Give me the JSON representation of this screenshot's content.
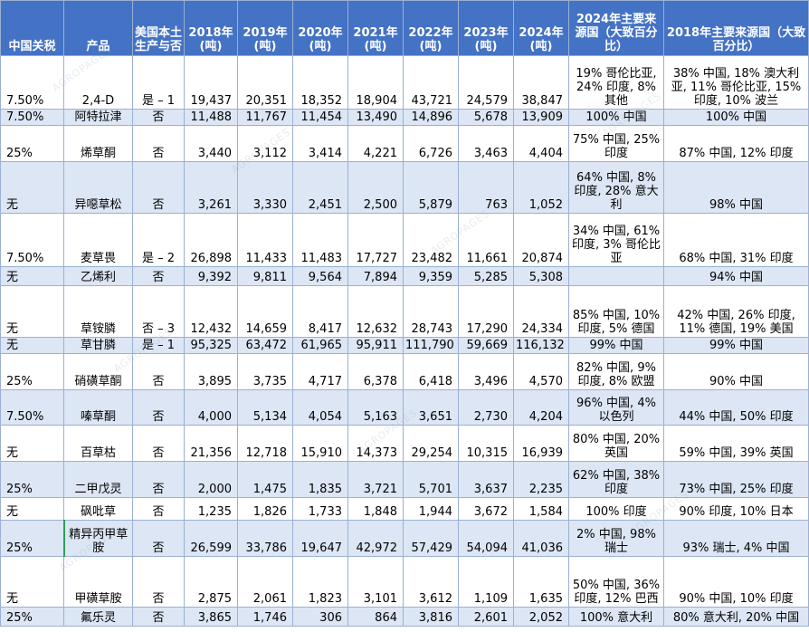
{
  "headers": {
    "tariff": "中国关税",
    "product": "产品",
    "domestic": "美国本土生产与否",
    "y2018": "2018年(吨)",
    "y2019": "2019年(吨)",
    "y2020": "2020年(吨)",
    "y2021": "2021年(吨)",
    "y2022": "2022年(吨)",
    "y2023": "2023年(吨)",
    "y2024": "2024年(吨)",
    "src2024": "2024年主要来源国（大致百分比）",
    "src2018": "2018年主要来源国（大致百分比）"
  },
  "watermark_text": "AGROPAGES",
  "rows": [
    {
      "tariff": "7.50%",
      "product": "2,4-D",
      "domestic": "是 – 1",
      "y2018": "19,437",
      "y2019": "20,351",
      "y2020": "18,352",
      "y2021": "18,904",
      "y2022": "43,721",
      "y2023": "24,579",
      "y2024": "38,847",
      "src2024": "19% 哥伦比亚, 24% 印度, 8% 其他",
      "src2018": "38% 中国, 18% 澳大利亚, 11% 哥伦比亚, 15% 印度, 10% 波兰"
    },
    {
      "tariff": "7.50%",
      "product": "阿特拉津",
      "domestic": "否",
      "y2018": "11,488",
      "y2019": "11,767",
      "y2020": "11,454",
      "y2021": "13,490",
      "y2022": "14,896",
      "y2023": "5,678",
      "y2024": "13,909",
      "src2024": "100% 中国",
      "src2018": "100% 中国"
    },
    {
      "tariff": "25%",
      "product": "烯草酮",
      "domestic": "否",
      "y2018": "3,440",
      "y2019": "3,112",
      "y2020": "3,414",
      "y2021": "4,221",
      "y2022": "6,726",
      "y2023": "3,463",
      "y2024": "4,404",
      "src2024": "75% 中国, 25% 印度",
      "src2018": "87% 中国, 12% 印度"
    },
    {
      "tariff": "无",
      "product": "异噁草松",
      "domestic": "否",
      "y2018": "3,261",
      "y2019": "3,330",
      "y2020": "2,451",
      "y2021": "2,500",
      "y2022": "5,879",
      "y2023": "763",
      "y2024": "1,052",
      "src2024": "64% 中国, 8% 印度, 28% 意大利",
      "src2018": "98% 中国"
    },
    {
      "tariff": "7.50%",
      "product": "麦草畏",
      "domestic": "是 – 2",
      "y2018": "26,898",
      "y2019": "11,433",
      "y2020": "11,483",
      "y2021": "17,727",
      "y2022": "23,482",
      "y2023": "11,661",
      "y2024": "20,874",
      "src2024": "34% 中国, 61% 印度, 3% 哥伦比亚",
      "src2018": "68% 中国, 31% 印度"
    },
    {
      "tariff": "无",
      "product": "乙烯利",
      "domestic": "否",
      "y2018": "9,392",
      "y2019": "9,811",
      "y2020": "9,564",
      "y2021": "7,894",
      "y2022": "9,359",
      "y2023": "5,285",
      "y2024": "5,308",
      "src2024": "",
      "src2018": "94% 中国"
    },
    {
      "tariff": "无",
      "product": "草铵膦",
      "domestic": "否 – 3",
      "y2018": "12,432",
      "y2019": "14,659",
      "y2020": "8,417",
      "y2021": "12,632",
      "y2022": "28,743",
      "y2023": "17,290",
      "y2024": "24,334",
      "src2024": "85% 中国, 10% 印度, 5% 德国",
      "src2018": "42% 中国, 26% 印度, 11% 德国, 19% 美国"
    },
    {
      "tariff": "无",
      "product": "草甘膦",
      "domestic": "是 – 1",
      "y2018": "95,325",
      "y2019": "63,472",
      "y2020": "61,965",
      "y2021": "95,911",
      "y2022": "111,790",
      "y2023": "59,669",
      "y2024": "116,132",
      "src2024": "99% 中国",
      "src2018": "99% 中国"
    },
    {
      "tariff": "25%",
      "product": "硝磺草酮",
      "domestic": "否",
      "y2018": "3,895",
      "y2019": "3,735",
      "y2020": "4,717",
      "y2021": "6,378",
      "y2022": "6,418",
      "y2023": "3,496",
      "y2024": "4,570",
      "src2024": "82% 中国, 9% 印度, 8% 欧盟",
      "src2018": "90% 中国"
    },
    {
      "tariff": "7.50%",
      "product": "嗪草酮",
      "domestic": "否",
      "y2018": "4,000",
      "y2019": "5,134",
      "y2020": "4,054",
      "y2021": "5,163",
      "y2022": "3,651",
      "y2023": "2,730",
      "y2024": "4,204",
      "src2024": "96% 中国, 4% 以色列",
      "src2018": "44% 中国, 50% 印度"
    },
    {
      "tariff": "无",
      "product": "百草枯",
      "domestic": "否",
      "y2018": "21,356",
      "y2019": "12,718",
      "y2020": "15,910",
      "y2021": "14,373",
      "y2022": "29,254",
      "y2023": "10,315",
      "y2024": "16,939",
      "src2024": "80% 中国, 20% 英国",
      "src2018": "59% 中国, 39% 英国"
    },
    {
      "tariff": "25%",
      "product": "二甲戊灵",
      "domestic": "否",
      "y2018": "2,000",
      "y2019": "1,475",
      "y2020": "1,835",
      "y2021": "3,721",
      "y2022": "5,701",
      "y2023": "3,637",
      "y2024": "2,235",
      "src2024": "62% 中国, 38% 印度",
      "src2018": "73% 中国, 25% 印度"
    },
    {
      "tariff": "无",
      "product": "砜吡草",
      "domestic": "否",
      "y2018": "1,235",
      "y2019": "1,826",
      "y2020": "1,733",
      "y2021": "1,848",
      "y2022": "1,944",
      "y2023": "3,672",
      "y2024": "1,584",
      "src2024": "100% 印度",
      "src2018": "90% 印度, 10% 日本"
    },
    {
      "tariff": "25%",
      "product": "精异丙甲草胺",
      "domestic": "否",
      "y2018": "26,599",
      "y2019": "33,786",
      "y2020": "19,647",
      "y2021": "42,972",
      "y2022": "57,429",
      "y2023": "54,094",
      "y2024": "41,036",
      "src2024": "2% 中国, 98% 瑞士",
      "src2018": "93% 瑞士, 4% 中国"
    },
    {
      "tariff": "无",
      "product": "甲磺草胺",
      "domestic": "否",
      "y2018": "2,875",
      "y2019": "2,061",
      "y2020": "1,823",
      "y2021": "3,101",
      "y2022": "3,612",
      "y2023": "1,109",
      "y2024": "1,635",
      "src2024": "50% 中国, 36% 印度, 12% 巴西",
      "src2018": "90% 中国, 10% 印度"
    },
    {
      "tariff": "25%",
      "product": "氟乐灵",
      "domestic": "否",
      "y2018": "3,865",
      "y2019": "1,746",
      "y2020": "306",
      "y2021": "864",
      "y2022": "3,816",
      "y2023": "2,601",
      "y2024": "2,052",
      "src2024": "100% 意大利",
      "src2018": "80% 意大利, 20% 中国"
    }
  ]
}
